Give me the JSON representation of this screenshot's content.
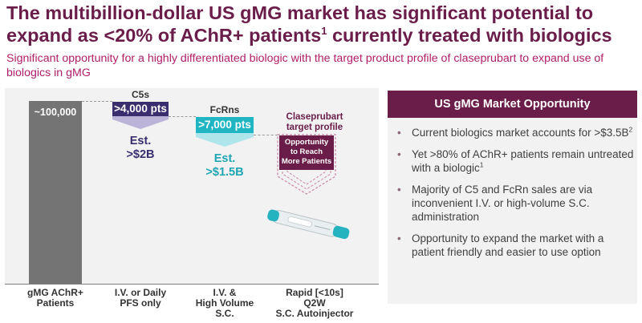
{
  "header": {
    "title_part1": "The multibillion-dollar US gMG market has significant potential to expand as <20% of AChR+ patients",
    "title_sup": "1",
    "title_part2": " currently treated with biologics",
    "subtitle": "Significant opportunity for a highly differentiated biologic with the target product profile of claseprubart to expand use of biologics in gMG"
  },
  "chart": {
    "main_bar_label": "~100,000",
    "groups": {
      "c5": {
        "group_label": "C5s",
        "pts": ">4,000 pts",
        "est_line1": "Est.",
        "est_line2": ">$2B"
      },
      "fcrn": {
        "group_label": "FcRns",
        "pts": ">7,000 pts",
        "est_line1": "Est.",
        "est_line2": ">$1.5B"
      },
      "target": {
        "label_line1": "Claseprubart",
        "label_line2": "target profile",
        "arrow_line1": "Opportunity",
        "arrow_line2": "to Reach",
        "arrow_line3": "More Patients"
      }
    },
    "categories": [
      {
        "line1": "gMG AChR+",
        "line2": "Patients",
        "line3": ""
      },
      {
        "line1": "I.V. or Daily",
        "line2": "PFS only",
        "line3": ""
      },
      {
        "line1": "I.V. &",
        "line2": "High Volume",
        "line3": "S.C."
      },
      {
        "line1": "Rapid [<10s]",
        "line2": "Q2W",
        "line3": "S.C. Autoinjector"
      }
    ],
    "colors": {
      "c5": "#3b2e6e",
      "c5_light": "#bcb3d8",
      "fcrn": "#1fb5c3",
      "fcrn_light": "#aee5ea",
      "brand": "#6b1d4a",
      "main_bar": "#747474"
    }
  },
  "panel": {
    "title": "US gMG Market Opportunity",
    "bullets": [
      {
        "text": "Current biologics market accounts for >$3.5B",
        "sup": "2"
      },
      {
        "text": "Yet >80% of AChR+ patients remain untreated with a biologic",
        "sup": "1"
      },
      {
        "text": "Majority of C5 and FcRn sales are via inconvenient I.V. or high-volume S.C. administration",
        "sup": ""
      },
      {
        "text": "Opportunity to expand the market with a patient friendly and easier to use option",
        "sup": ""
      }
    ]
  }
}
